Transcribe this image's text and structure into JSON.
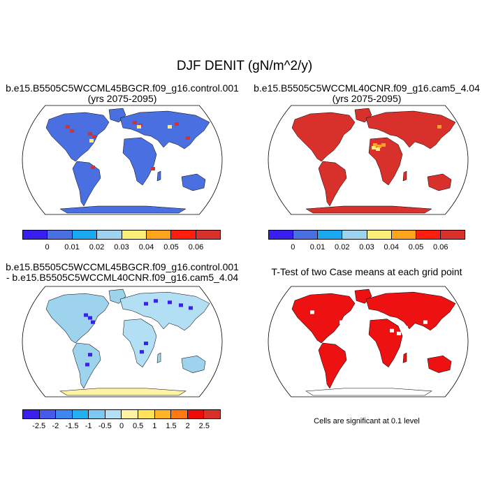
{
  "figure": {
    "title": "DJF DENIT (gN/m^2/y)"
  },
  "panels": [
    {
      "title_line1": "b.e15.B5505C5WCCML45BGCR.f09_g16.control.001",
      "title_line2": "(yrs 2075-2095)",
      "dominant_color": "#4a6fe0"
    },
    {
      "title_line1": "b.e15.B5505C5WCCML40CNR.f09_g16.cam5_4.04",
      "title_line2": "(yrs 2075-2095)",
      "dominant_color": "#d8302a"
    },
    {
      "title_line1": "b.e15.B5505C5WCCML45BGCR.f09_g16.control.001",
      "title_line2": "- b.e15.B5505C5WCCML40CNR.f09_g16.cam5_4.04",
      "dominant_color": "#9ed3ee"
    },
    {
      "title_line1": "T-Test of two Case means at each grid point",
      "title_line2": "",
      "dominant_color": "#ee1111"
    }
  ],
  "colorbars": {
    "abs": {
      "colors": [
        "#3a1ff0",
        "#4a6fe0",
        "#1aa8f0",
        "#9ed3ee",
        "#fdee7a",
        "#fda41d",
        "#ff1f0f",
        "#d8302a"
      ],
      "labels": [
        "0",
        "0.01",
        "0.02",
        "0.03",
        "0.04",
        "0.05",
        "0.06"
      ]
    },
    "diff": {
      "colors": [
        "#3a1ff0",
        "#4a5ae8",
        "#3f86ef",
        "#22b0f0",
        "#7cc8f0",
        "#b2dff4",
        "#fff3a3",
        "#ffe35a",
        "#ffb326",
        "#ff7a10",
        "#ef0a0a",
        "#d8302a"
      ],
      "labels": [
        "-2.5",
        "-2",
        "-1.5",
        "-1",
        "-0.5",
        "0",
        "0.5",
        "1",
        "1.5",
        "2",
        "2.5"
      ]
    }
  },
  "ttest_note": "Cells are significant at 0.1 level"
}
